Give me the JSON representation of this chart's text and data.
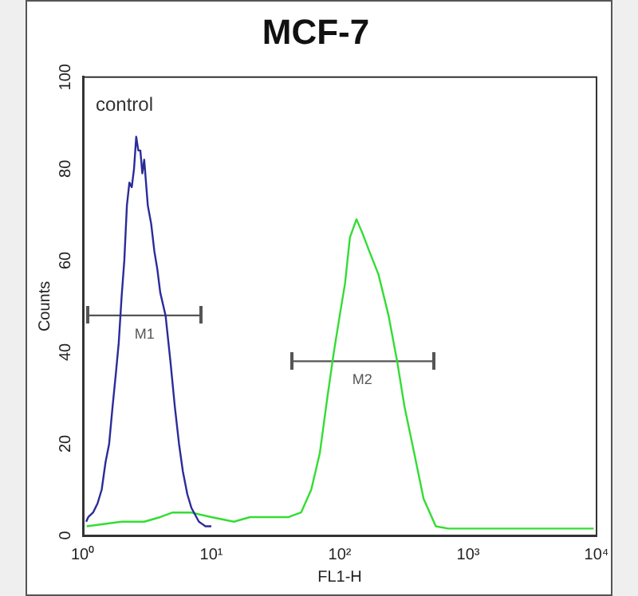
{
  "chart_data": {
    "type": "line",
    "title": "MCF-7",
    "xlabel": "FL1-H",
    "ylabel": "Counts",
    "log": "x",
    "xlim": [
      1,
      10000
    ],
    "xticks": [
      {
        "value": 1,
        "label": "10⁰"
      },
      {
        "value": 10,
        "label": "10¹"
      },
      {
        "value": 100,
        "label": "10²"
      },
      {
        "value": 1000,
        "label": "10³"
      },
      {
        "value": 10000,
        "label": "10⁴"
      }
    ],
    "ylim": [
      0,
      100
    ],
    "yticks": [
      0,
      20,
      40,
      60,
      80,
      100
    ],
    "grid": false,
    "legend": false,
    "marker": "none",
    "line_style": "solid",
    "series": [
      {
        "color": "#2b2b9a",
        "x": [
          1.06,
          1.1,
          1.2,
          1.3,
          1.4,
          1.5,
          1.6,
          1.7,
          1.8,
          1.9,
          2.0,
          2.1,
          2.2,
          2.3,
          2.4,
          2.5,
          2.6,
          2.7,
          2.8,
          2.9,
          3.0,
          3.2,
          3.4,
          3.6,
          3.8,
          4.0,
          4.4,
          4.8,
          5.2,
          5.6,
          6.0,
          6.5,
          7.0,
          8.0,
          9.0,
          10
        ],
        "values": [
          3,
          4,
          5,
          7,
          10,
          16,
          20,
          28,
          35,
          42,
          52,
          60,
          72,
          77,
          76,
          80,
          87,
          84,
          84,
          79,
          82,
          72,
          68,
          62,
          58,
          53,
          48,
          38,
          28,
          20,
          14,
          9,
          6,
          3,
          2,
          2
        ]
      },
      {
        "color": "#33dd33",
        "x": [
          1.07,
          2,
          3,
          4,
          5,
          7,
          10,
          15,
          20,
          30,
          40,
          50,
          60,
          70,
          80,
          90,
          100,
          110,
          120,
          135,
          150,
          170,
          200,
          240,
          280,
          320,
          380,
          450,
          560,
          700,
          1000,
          9500
        ],
        "values": [
          2,
          3,
          3,
          4,
          5,
          5,
          4,
          3,
          4,
          4,
          4,
          5,
          10,
          18,
          30,
          40,
          48,
          55,
          65,
          69,
          66,
          62,
          57,
          48,
          38,
          28,
          18,
          8,
          2,
          1.5,
          1.5,
          1.5
        ]
      },
      {
        "name": "M1",
        "type": "line",
        "color": "#555555",
        "x": [
          1.1,
          8.3
        ],
        "values": [
          48,
          48
        ]
      },
      {
        "name": "M2",
        "type": "line",
        "color": "#555555",
        "x": [
          42,
          535
        ],
        "values": [
          38,
          38
        ]
      }
    ],
    "annotations": [
      "control"
    ]
  }
}
